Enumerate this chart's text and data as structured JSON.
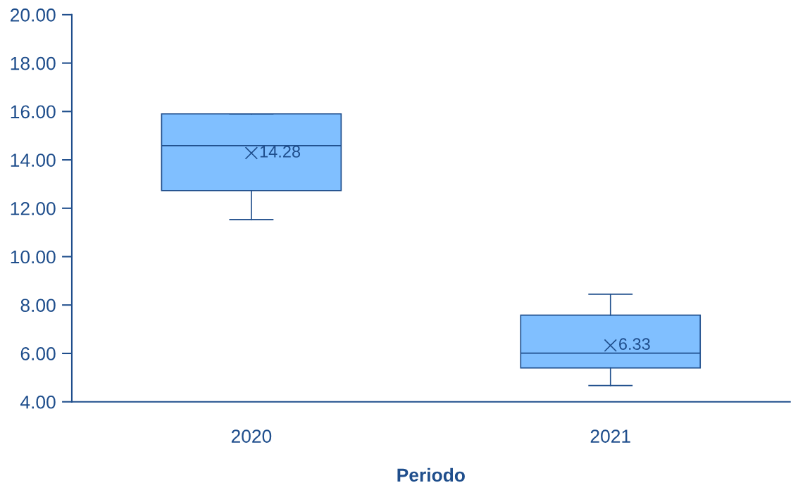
{
  "chart_data": {
    "type": "box",
    "xlabel": "Periodo",
    "categories": [
      "2020",
      "2021"
    ],
    "boxes": [
      {
        "low": 11.53,
        "q1": 12.73,
        "median": 14.59,
        "q3": 15.9,
        "high": 15.9,
        "mean": 14.28
      },
      {
        "low": 4.67,
        "q1": 5.4,
        "median": 6.01,
        "q3": 7.58,
        "high": 8.45,
        "mean": 6.33
      }
    ],
    "color": "#80bfff",
    "ylim": [
      4,
      20
    ],
    "yticks": [
      {
        "value": 4,
        "label": "4.00"
      },
      {
        "value": 6,
        "label": "6.00"
      },
      {
        "value": 8,
        "label": "8.00"
      },
      {
        "value": 10,
        "label": "10.00"
      },
      {
        "value": 12,
        "label": "12.00"
      },
      {
        "value": 14,
        "label": "14.00"
      },
      {
        "value": 16,
        "label": "16.00"
      },
      {
        "value": 18,
        "label": "18.00"
      },
      {
        "value": 20,
        "label": "20.00"
      }
    ],
    "annotations": [
      "14.28",
      "6.33"
    ],
    "grid": false,
    "marker": "cross"
  }
}
